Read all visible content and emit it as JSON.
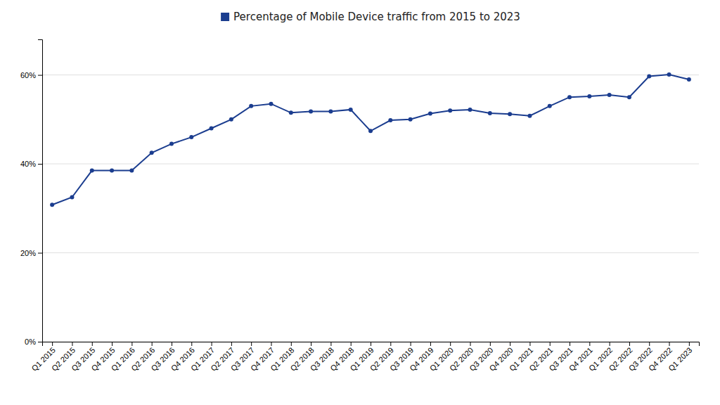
{
  "chart_data": {
    "type": "line",
    "categories": [
      "Q1 2015",
      "Q2 2015",
      "Q3 2015",
      "Q4 2015",
      "Q1 2016",
      "Q2 2016",
      "Q3 2016",
      "Q4 2016",
      "Q1 2017",
      "Q2 2017",
      "Q3 2017",
      "Q4 2017",
      "Q1 2018",
      "Q2 2018",
      "Q3 2018",
      "Q4 2018",
      "Q1 2019",
      "Q2 2019",
      "Q3 2019",
      "Q4 2019",
      "Q1 2020",
      "Q2 2020",
      "Q3 2020",
      "Q4 2020",
      "Q1 2021",
      "Q2 2021",
      "Q3 2021",
      "Q4 2021",
      "Q1 2022",
      "Q2 2022",
      "Q3 2022",
      "Q4 2022",
      "Q1 2023"
    ],
    "series": [
      {
        "name": "Percentage of Mobile Device traffic from 2015 to 2023",
        "color": "#1b3d8f",
        "marker": "circle",
        "values": [
          0.308,
          0.325,
          0.385,
          0.385,
          0.385,
          0.425,
          0.445,
          0.46,
          0.48,
          0.5,
          0.53,
          0.535,
          0.515,
          0.518,
          0.518,
          0.522,
          0.474,
          0.498,
          0.5,
          0.513,
          0.52,
          0.522,
          0.514,
          0.512,
          0.508,
          0.53,
          0.55,
          0.552,
          0.555,
          0.55,
          0.597,
          0.601,
          0.59
        ]
      }
    ],
    "ylim": [
      0,
      0.68
    ],
    "yticks": [
      {
        "value": 0.0,
        "label": "0%"
      },
      {
        "value": 0.2,
        "label": "20%"
      },
      {
        "value": 0.4,
        "label": "40%"
      },
      {
        "value": 0.6,
        "label": "60%"
      }
    ],
    "grid": true,
    "legend": "top"
  }
}
